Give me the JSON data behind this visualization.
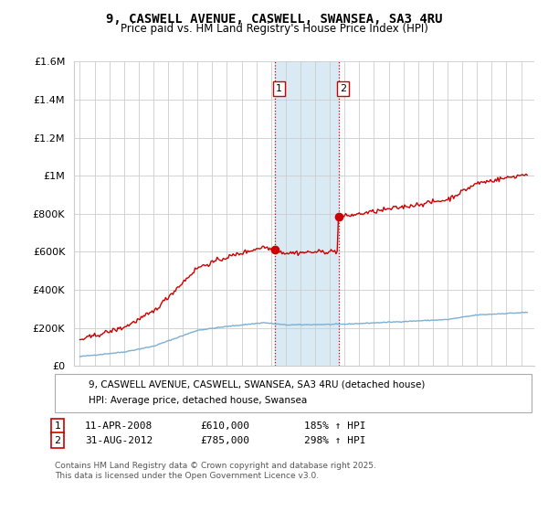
{
  "title": "9, CASWELL AVENUE, CASWELL, SWANSEA, SA3 4RU",
  "subtitle": "Price paid vs. HM Land Registry's House Price Index (HPI)",
  "property_label": "9, CASWELL AVENUE, CASWELL, SWANSEA, SA3 4RU (detached house)",
  "hpi_label": "HPI: Average price, detached house, Swansea",
  "transaction1_date": "11-APR-2008",
  "transaction1_price": 610000,
  "transaction1_hpi": "185% ↑ HPI",
  "transaction2_date": "31-AUG-2012",
  "transaction2_price": 785000,
  "transaction2_hpi": "298% ↑ HPI",
  "footer": "Contains HM Land Registry data © Crown copyright and database right 2025.\nThis data is licensed under the Open Government Licence v3.0.",
  "property_color": "#cc0000",
  "hpi_color": "#7bafd4",
  "shade_color": "#daeaf5",
  "ylim_max": 1600000,
  "ytick_interval": 200000
}
